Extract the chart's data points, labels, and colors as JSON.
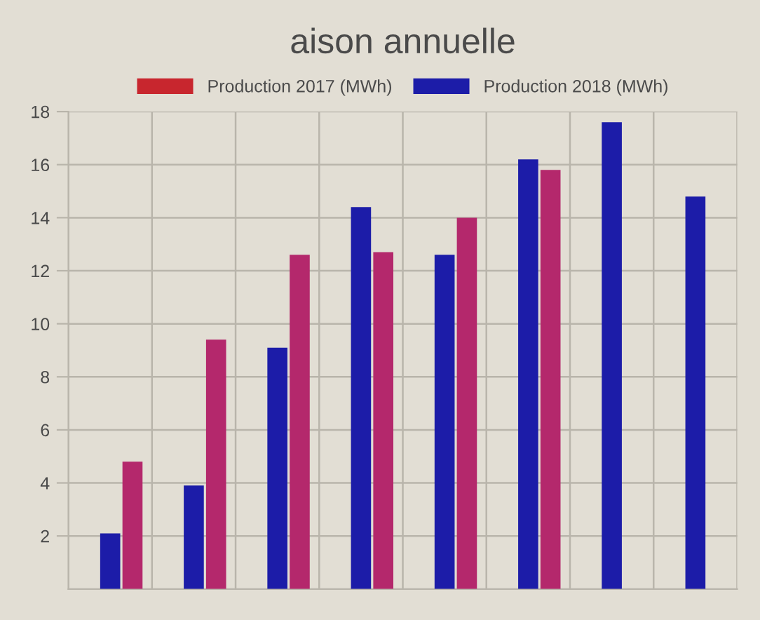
{
  "chart_data": {
    "type": "bar",
    "title": "aison annuelle",
    "categories": [
      null,
      null,
      null,
      null,
      null,
      null,
      null,
      null
    ],
    "series": [
      {
        "name": "Production 2017 (MWh)",
        "color": "#c8262e",
        "values": [
          null,
          null,
          null,
          null,
          null,
          null,
          null,
          null
        ]
      },
      {
        "name": "Production 2018 (MWh)",
        "color": "#1c1ca8",
        "values": [
          2.1,
          3.9,
          9.1,
          14.4,
          12.6,
          16.2,
          17.6,
          14.8
        ]
      },
      {
        "color": "#b4286c",
        "values": [
          4.8,
          9.4,
          12.6,
          12.7,
          14.0,
          15.8,
          null,
          null
        ]
      }
    ],
    "ylim": [
      0,
      18
    ],
    "yticks": [
      2,
      4,
      6,
      8,
      10,
      12,
      14,
      16,
      18
    ],
    "grid": true,
    "legend": "top",
    "tick_labels": "y"
  }
}
